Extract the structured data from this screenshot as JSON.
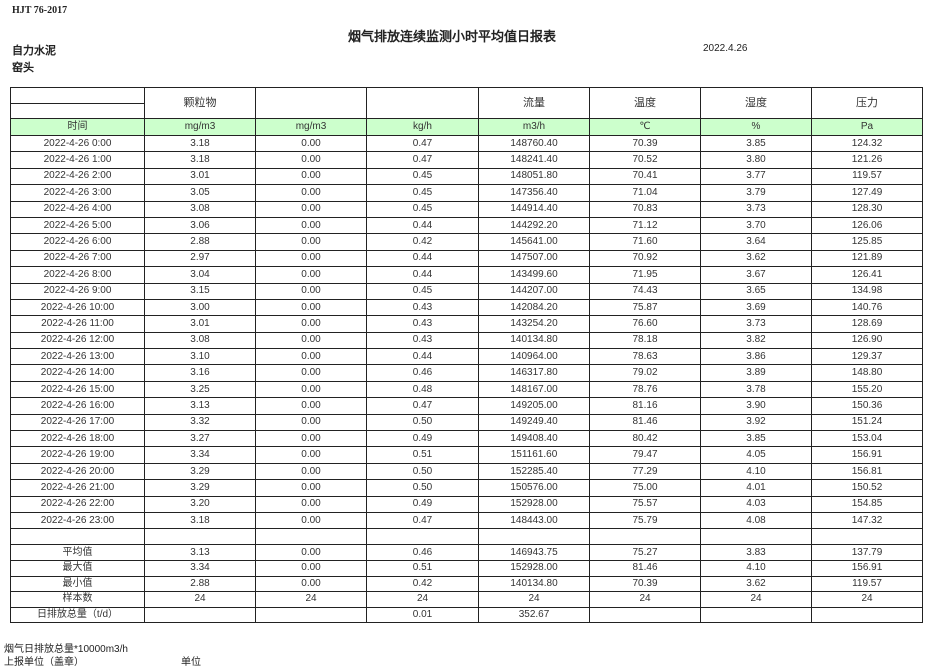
{
  "header": {
    "standard": "HJT  76-2017",
    "title": "烟气排放连续监测小时平均值日报表",
    "company": "自力水泥",
    "date": "2022.4.26",
    "location": "窑头"
  },
  "columns": {
    "names": [
      "",
      "颗粒物",
      "",
      "",
      "流量",
      "温度",
      "湿度",
      "压力"
    ],
    "units": [
      "时间",
      "mg/m3",
      "mg/m3",
      "kg/h",
      "m3/h",
      "℃",
      "%",
      "Pa"
    ]
  },
  "rows": [
    [
      "2022-4-26 0:00",
      "3.18",
      "0.00",
      "0.47",
      "148760.40",
      "70.39",
      "3.85",
      "124.32"
    ],
    [
      "2022-4-26 1:00",
      "3.18",
      "0.00",
      "0.47",
      "148241.40",
      "70.52",
      "3.80",
      "121.26"
    ],
    [
      "2022-4-26 2:00",
      "3.01",
      "0.00",
      "0.45",
      "148051.80",
      "70.41",
      "3.77",
      "119.57"
    ],
    [
      "2022-4-26 3:00",
      "3.05",
      "0.00",
      "0.45",
      "147356.40",
      "71.04",
      "3.79",
      "127.49"
    ],
    [
      "2022-4-26 4:00",
      "3.08",
      "0.00",
      "0.45",
      "144914.40",
      "70.83",
      "3.73",
      "128.30"
    ],
    [
      "2022-4-26 5:00",
      "3.06",
      "0.00",
      "0.44",
      "144292.20",
      "71.12",
      "3.70",
      "126.06"
    ],
    [
      "2022-4-26 6:00",
      "2.88",
      "0.00",
      "0.42",
      "145641.00",
      "71.60",
      "3.64",
      "125.85"
    ],
    [
      "2022-4-26 7:00",
      "2.97",
      "0.00",
      "0.44",
      "147507.00",
      "70.92",
      "3.62",
      "121.89"
    ],
    [
      "2022-4-26 8:00",
      "3.04",
      "0.00",
      "0.44",
      "143499.60",
      "71.95",
      "3.67",
      "126.41"
    ],
    [
      "2022-4-26 9:00",
      "3.15",
      "0.00",
      "0.45",
      "144207.00",
      "74.43",
      "3.65",
      "134.98"
    ],
    [
      "2022-4-26 10:00",
      "3.00",
      "0.00",
      "0.43",
      "142084.20",
      "75.87",
      "3.69",
      "140.76"
    ],
    [
      "2022-4-26 11:00",
      "3.01",
      "0.00",
      "0.43",
      "143254.20",
      "76.60",
      "3.73",
      "128.69"
    ],
    [
      "2022-4-26 12:00",
      "3.08",
      "0.00",
      "0.43",
      "140134.80",
      "78.18",
      "3.82",
      "126.90"
    ],
    [
      "2022-4-26 13:00",
      "3.10",
      "0.00",
      "0.44",
      "140964.00",
      "78.63",
      "3.86",
      "129.37"
    ],
    [
      "2022-4-26 14:00",
      "3.16",
      "0.00",
      "0.46",
      "146317.80",
      "79.02",
      "3.89",
      "148.80"
    ],
    [
      "2022-4-26 15:00",
      "3.25",
      "0.00",
      "0.48",
      "148167.00",
      "78.76",
      "3.78",
      "155.20"
    ],
    [
      "2022-4-26 16:00",
      "3.13",
      "0.00",
      "0.47",
      "149205.00",
      "81.16",
      "3.90",
      "150.36"
    ],
    [
      "2022-4-26 17:00",
      "3.32",
      "0.00",
      "0.50",
      "149249.40",
      "81.46",
      "3.92",
      "151.24"
    ],
    [
      "2022-4-26 18:00",
      "3.27",
      "0.00",
      "0.49",
      "149408.40",
      "80.42",
      "3.85",
      "153.04"
    ],
    [
      "2022-4-26 19:00",
      "3.34",
      "0.00",
      "0.51",
      "151161.60",
      "79.47",
      "4.05",
      "156.91"
    ],
    [
      "2022-4-26 20:00",
      "3.29",
      "0.00",
      "0.50",
      "152285.40",
      "77.29",
      "4.10",
      "156.81"
    ],
    [
      "2022-4-26 21:00",
      "3.29",
      "0.00",
      "0.50",
      "150576.00",
      "75.00",
      "4.01",
      "150.52"
    ],
    [
      "2022-4-26 22:00",
      "3.20",
      "0.00",
      "0.49",
      "152928.00",
      "75.57",
      "4.03",
      "154.85"
    ],
    [
      "2022-4-26 23:00",
      "3.18",
      "0.00",
      "0.47",
      "148443.00",
      "75.79",
      "4.08",
      "147.32"
    ]
  ],
  "stats": [
    [
      "平均值",
      "3.13",
      "0.00",
      "0.46",
      "146943.75",
      "75.27",
      "3.83",
      "137.79"
    ],
    [
      "最大值",
      "3.34",
      "0.00",
      "0.51",
      "152928.00",
      "81.46",
      "4.10",
      "156.91"
    ],
    [
      "最小值",
      "2.88",
      "0.00",
      "0.42",
      "140134.80",
      "70.39",
      "3.62",
      "119.57"
    ],
    [
      "样本数",
      "24",
      "24",
      "24",
      "24",
      "24",
      "24",
      "24"
    ],
    [
      "日排放总量（t/d）",
      "",
      "",
      "0.01",
      "352.67",
      "",
      "",
      ""
    ]
  ],
  "footer": {
    "note": "烟气日排放总量*10000m3/h",
    "unit_label": "上报单位（盖章）",
    "unit_value": "单位"
  },
  "colors": {
    "units_row_bg": "#ccffcc"
  }
}
